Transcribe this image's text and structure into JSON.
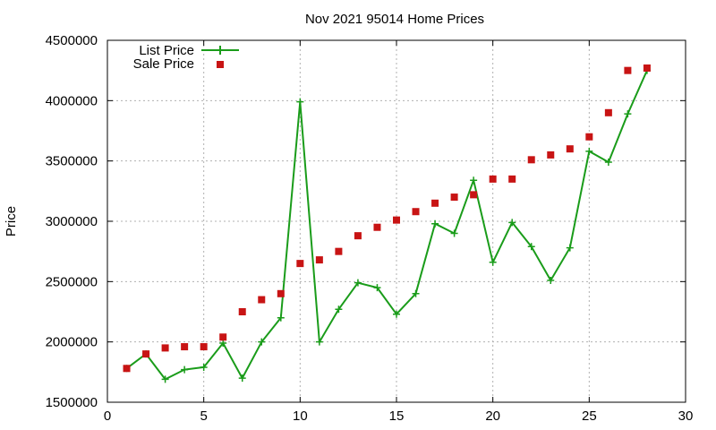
{
  "chart_data": {
    "type": "line",
    "title": "Nov 2021 95014 Home Prices",
    "xlabel": "",
    "ylabel": "Price",
    "xlim": [
      0,
      30
    ],
    "ylim": [
      1500000,
      4500000
    ],
    "xticks": [
      0,
      5,
      10,
      15,
      20,
      25,
      30
    ],
    "yticks": [
      1500000,
      2000000,
      2500000,
      3000000,
      3500000,
      4000000,
      4500000
    ],
    "xtick_labels": [
      "0",
      "5",
      "10",
      "15",
      "20",
      "25",
      "30"
    ],
    "ytick_labels": [
      "1500000",
      "2000000",
      "2500000",
      "3000000",
      "3500000",
      "4000000",
      "4500000"
    ],
    "grid": true,
    "legend_position": "top-left",
    "x": [
      1,
      2,
      3,
      4,
      5,
      6,
      7,
      8,
      9,
      10,
      11,
      12,
      13,
      14,
      15,
      16,
      17,
      18,
      19,
      20,
      21,
      22,
      23,
      24,
      25,
      26,
      27,
      28
    ],
    "series": [
      {
        "name": "List Price",
        "style": "lines+plus-points",
        "color": "#1a9c1a",
        "values": [
          1780000,
          1900000,
          1690000,
          1770000,
          1790000,
          1990000,
          1700000,
          2000000,
          2200000,
          3990000,
          2000000,
          2270000,
          2490000,
          2450000,
          2230000,
          2400000,
          2980000,
          2900000,
          3340000,
          2660000,
          2990000,
          2790000,
          2510000,
          2780000,
          3580000,
          3490000,
          3890000,
          4250000
        ]
      },
      {
        "name": "Sale Price",
        "style": "square-points",
        "color": "#c81414",
        "values": [
          1780000,
          1900000,
          1950000,
          1960000,
          1960000,
          2040000,
          2250000,
          2350000,
          2400000,
          2650000,
          2680000,
          2750000,
          2880000,
          2950000,
          3010000,
          3080000,
          3150000,
          3200000,
          3220000,
          3350000,
          3350000,
          3510000,
          3550000,
          3600000,
          3700000,
          3900000,
          4250000,
          4270000
        ]
      }
    ]
  }
}
